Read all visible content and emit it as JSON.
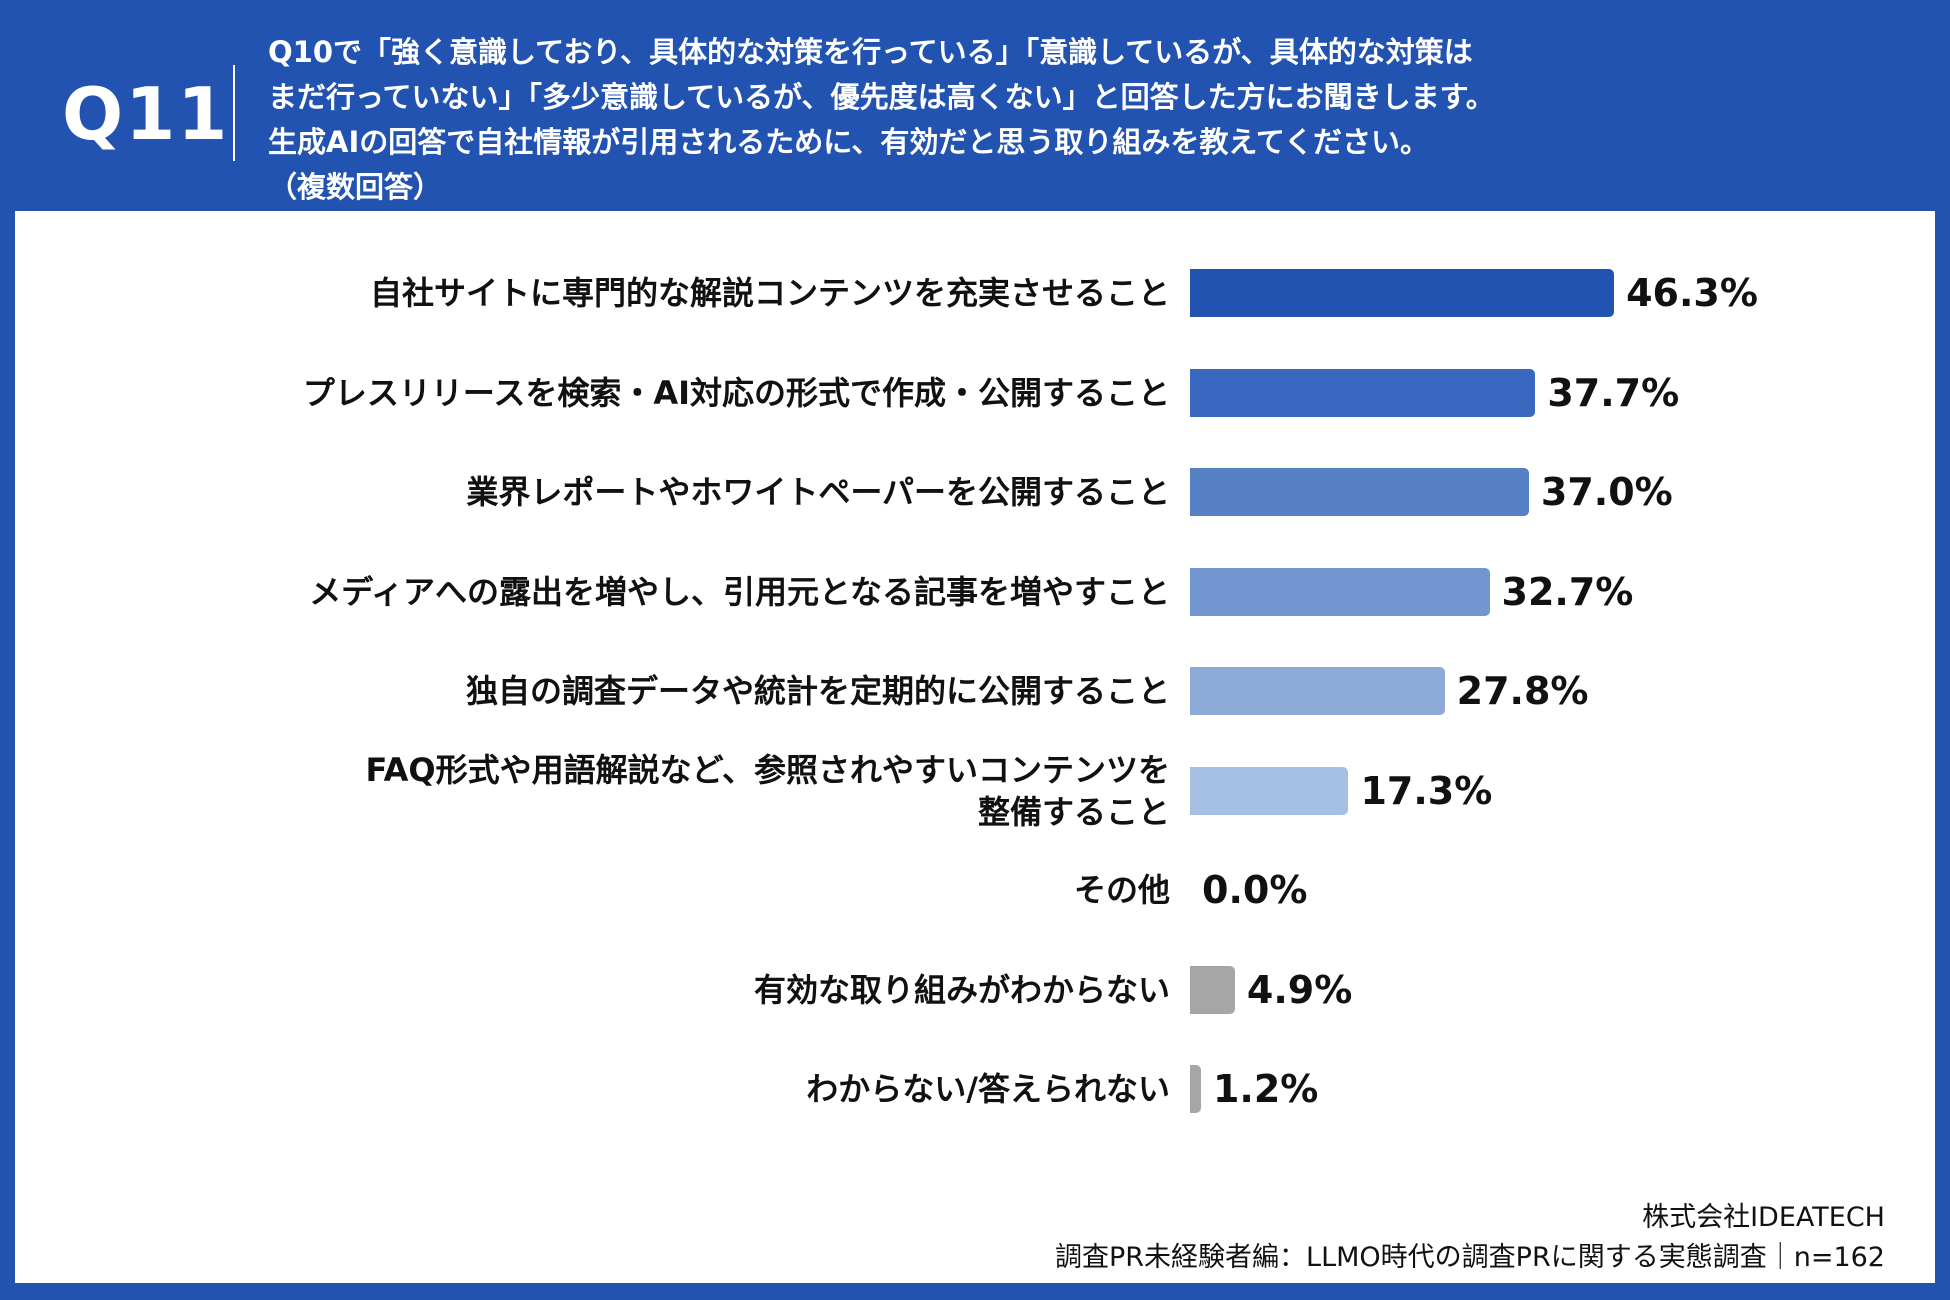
{
  "header": {
    "question_number": "Q11",
    "question_lines": [
      "Q10で「強く意識しており、具体的な対策を行っている」「意識しているが、具体的な対策は",
      "まだ行っていない」「多少意識しているが、優先度は高くない」と回答した方にお聞きします。",
      "生成AIの回答で自社情報が引用されるために、有効だと思う取り組みを教えてください。",
      "（複数回答）"
    ],
    "background_color": "#2253b0"
  },
  "chart_data": {
    "type": "bar",
    "orientation": "horizontal",
    "categories": [
      "自社サイトに専門的な解説コンテンツを充実させること",
      "プレスリリースを検索・AI対応の形式で作成・公開すること",
      "業界レポートやホワイトペーパーを公開すること",
      "メディアへの露出を増やし、引用元となる記事を増やすこと",
      "独自の調査データや統計を定期的に公開すること",
      "FAQ形式や用語解説など、参照されやすいコンテンツを\n整備すること",
      "その他",
      "有効な取り組みがわからない",
      "わからない/答えられない"
    ],
    "values": [
      46.3,
      37.7,
      37.0,
      32.7,
      27.8,
      17.3,
      0.0,
      4.9,
      1.2
    ],
    "value_labels": [
      "46.3%",
      "37.7%",
      "37.0%",
      "32.7%",
      "27.8%",
      "17.3%",
      "0.0%",
      "4.9%",
      "1.2%"
    ],
    "colors": [
      "#2253b0",
      "#3a67bf",
      "#5680c4",
      "#7296d0",
      "#8daad8",
      "#a6c0e3",
      "#a6a6a6",
      "#a6a6a6",
      "#a6a6a6"
    ],
    "unit": "%",
    "grid": false
  },
  "footer": {
    "company": "株式会社IDEATECH",
    "survey": "調査PR未経験者編：LLMO時代の調査PRに関する実態調査｜n=162"
  }
}
